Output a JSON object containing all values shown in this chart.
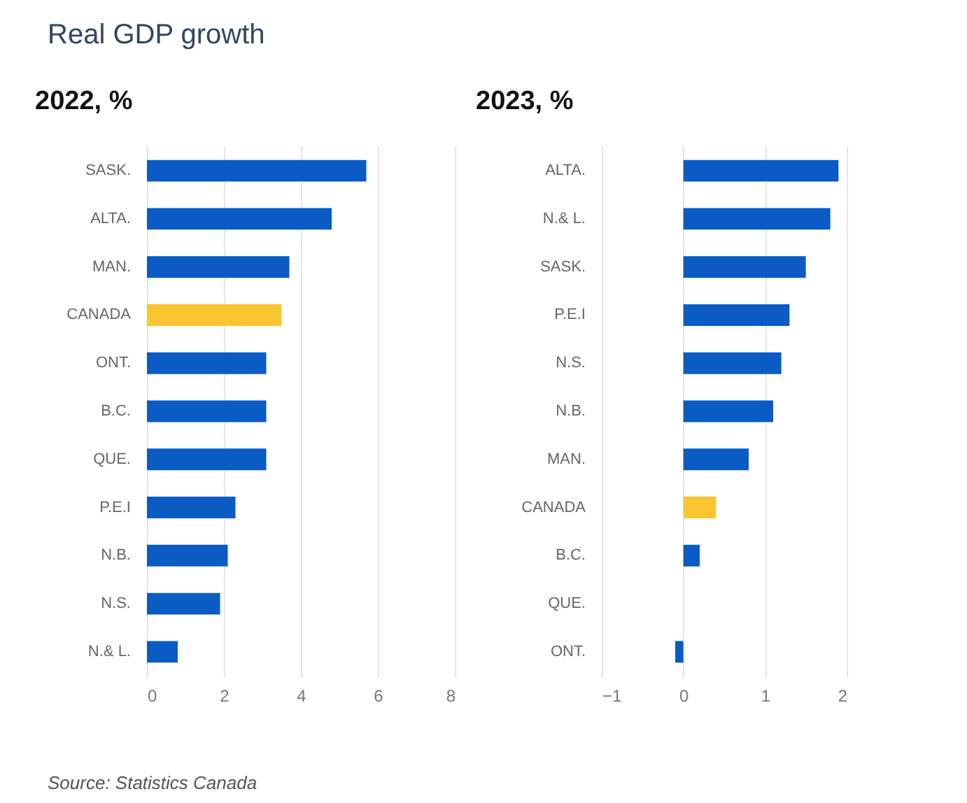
{
  "chart_data": [
    {
      "type": "bar",
      "title": "Real GDP growth",
      "subtitle": "2022, %",
      "orientation": "horizontal",
      "categories": [
        "SASK.",
        "ALTA.",
        "MAN.",
        "CANADA",
        "ONT.",
        "B.C.",
        "QUE.",
        "P.E.I",
        "N.B.",
        "N.S.",
        "N.& L."
      ],
      "values": [
        5.7,
        4.8,
        3.7,
        3.5,
        3.1,
        3.1,
        3.1,
        2.3,
        2.1,
        1.9,
        0.8
      ],
      "colors": [
        "#0a5bc4",
        "#0a5bc4",
        "#0a5bc4",
        "#fbc531",
        "#0a5bc4",
        "#0a5bc4",
        "#0a5bc4",
        "#0a5bc4",
        "#0a5bc4",
        "#0a5bc4",
        "#0a5bc4"
      ],
      "xlim": [
        0,
        8
      ],
      "xticks": [
        0,
        2,
        4,
        6,
        8
      ],
      "grid": "x",
      "annotations": [
        "Source: Statistics Canada"
      ]
    },
    {
      "type": "bar",
      "subtitle": "2023, %",
      "orientation": "horizontal",
      "categories": [
        "ALTA.",
        "N.& L.",
        "SASK.",
        "P.E.I",
        "N.S.",
        "N.B.",
        "MAN.",
        "CANADA",
        "B.C.",
        "QUE.",
        "ONT."
      ],
      "values": [
        1.9,
        1.8,
        1.5,
        1.3,
        1.2,
        1.1,
        0.8,
        0.4,
        0.2,
        0,
        -0.1
      ],
      "colors": [
        "#0a5bc4",
        "#0a5bc4",
        "#0a5bc4",
        "#0a5bc4",
        "#0a5bc4",
        "#0a5bc4",
        "#0a5bc4",
        "#fbc531",
        "#0a5bc4",
        "#0a5bc4",
        "#0a5bc4"
      ],
      "xlim": [
        -1,
        2
      ],
      "xticks": [
        -1,
        0,
        1,
        2
      ],
      "grid": "x"
    }
  ]
}
